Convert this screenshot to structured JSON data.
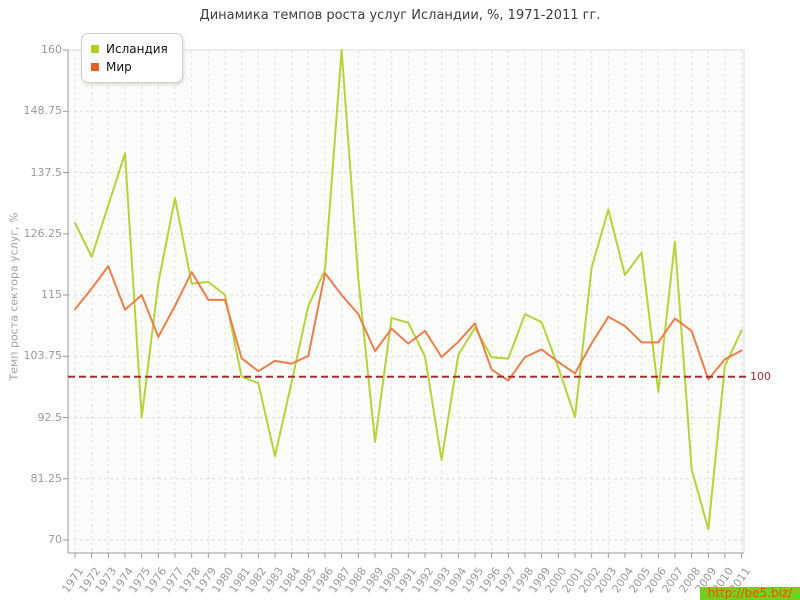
{
  "title": "Динамика темпов роста услуг Исландии, %, 1971-2011 гг.",
  "legend": {
    "items": [
      {
        "label": "Исландия",
        "color": "#abd222"
      },
      {
        "label": "Мир",
        "color": "#e55f25"
      }
    ]
  },
  "guide": {
    "value": 100,
    "label": "100",
    "color": "#993333"
  },
  "watermark": {
    "text": "http://be5.biz/"
  },
  "chart_data": {
    "type": "line",
    "title": "Динамика темпов роста услуг Исландии, %, 1971-2011 гг.",
    "xlabel": "",
    "ylabel": "Темп роста сектора услуг, %",
    "ylim": [
      70,
      160
    ],
    "grid": true,
    "legend_position": "top-left",
    "ytick_labels": [
      "160",
      "148.75",
      "137.5",
      "126.25",
      "115",
      "103.75",
      "92.5",
      "81.25",
      "70"
    ],
    "x": [
      "1971",
      "1972",
      "1973",
      "1974",
      "1975",
      "1976",
      "1977",
      "1978",
      "1979",
      "1980",
      "1981",
      "1982",
      "1983",
      "1984",
      "1985",
      "1986",
      "1987",
      "1988",
      "1989",
      "1990",
      "1991",
      "1992",
      "1993",
      "1994",
      "1995",
      "1996",
      "1997",
      "1998",
      "1999",
      "2000",
      "2001",
      "2002",
      "2003",
      "2004",
      "2005",
      "2006",
      "2007",
      "2008",
      "2009",
      "2010",
      "2011"
    ],
    "series": [
      {
        "name": "Исландия",
        "color": "#b5d33b",
        "values": [
          128.2,
          122,
          131.5,
          141,
          92.5,
          117.2,
          132.8,
          117.1,
          117.4,
          115,
          100,
          98.8,
          85.4,
          99,
          113,
          119.6,
          160,
          118,
          88,
          110.8,
          109.9,
          103.7,
          84.7,
          104,
          109,
          103.6,
          103.3,
          111.5,
          110,
          101.7,
          92.6,
          120,
          130.7,
          118.7,
          122.8,
          97.2,
          124.8,
          83,
          72,
          102,
          108.5
        ]
      },
      {
        "name": "Мир",
        "color": "#e87f4d",
        "values": [
          112.4,
          116.2,
          120.3,
          112.3,
          115,
          107.3,
          113,
          119.2,
          114.1,
          114.1,
          103.4,
          101,
          102.9,
          102.4,
          103.8,
          119,
          115,
          111.5,
          104.7,
          108.8,
          106.1,
          108.4,
          103.6,
          106.4,
          109.8,
          101.3,
          99.3,
          103.6,
          105,
          102.7,
          100.6,
          106.1,
          111,
          109.3,
          106.3,
          106.3,
          110.7,
          108.4,
          99.5,
          103.2,
          104.8
        ]
      }
    ],
    "guide_line": {
      "value": 100,
      "style": "dashed"
    }
  }
}
